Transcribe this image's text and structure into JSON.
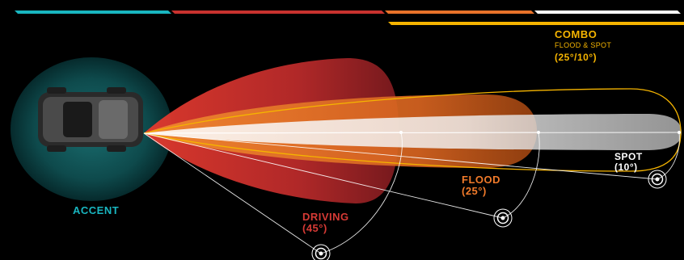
{
  "colors": {
    "accent": "#19b6c0",
    "driving": "#c8322e",
    "flood": "#e8722a",
    "combo": "#f5b400",
    "spot": "#ffffff"
  },
  "labels": {
    "combo_title": "COMBO",
    "combo_subtitle": "FLOOD & SPOT",
    "combo_angle": "(25°/10°)",
    "spot_title": "SPOT",
    "spot_angle": "(10°)",
    "flood_title": "FLOOD",
    "flood_angle": "(25°)",
    "driving_title": "DRIVING",
    "driving_angle": "(45°)",
    "accent_title": "ACCENT"
  },
  "icons": {
    "vehicle": "vehicle-top-view-icon",
    "target": "target-ring-icon"
  }
}
